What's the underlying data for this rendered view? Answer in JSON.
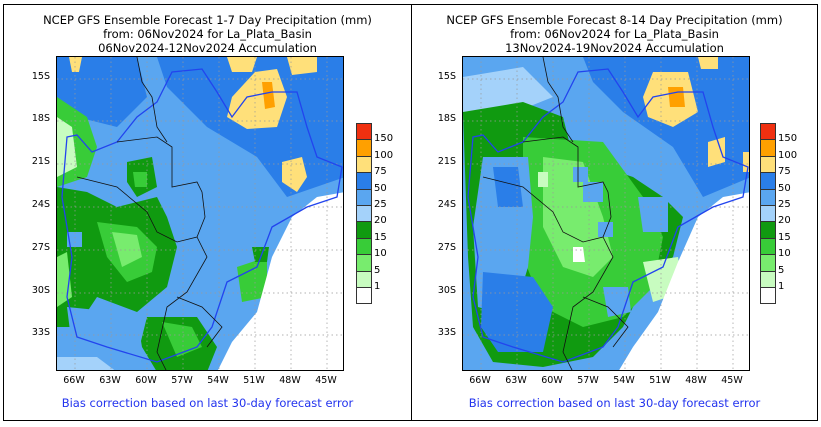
{
  "panels": [
    {
      "title_line1": "NCEP GFS Ensemble Forecast 1-7 Day Precipitation (mm)",
      "title_line2": "from: 06Nov2024   for La_Plata_Basin",
      "title_line3": "06Nov2024-12Nov2024 Accumulation",
      "footer": "Bias correction based on last 30-day forecast error"
    },
    {
      "title_line1": "NCEP GFS Ensemble Forecast 8-14 Day Precipitation (mm)",
      "title_line2": "from: 06Nov2024   for La_Plata_Basin",
      "title_line3": "13Nov2024-19Nov2024 Accumulation",
      "footer": "Bias correction based on last 30-day forecast error"
    }
  ],
  "axes": {
    "lat_labels": [
      "15S",
      "18S",
      "21S",
      "24S",
      "27S",
      "30S",
      "33S"
    ],
    "lon_labels": [
      "66W",
      "63W",
      "60W",
      "57W",
      "54W",
      "51W",
      "48W",
      "45W"
    ]
  },
  "legend": {
    "labels": [
      "150",
      "100",
      "75",
      "50",
      "25",
      "20",
      "15",
      "10",
      "5",
      "1"
    ],
    "colors": [
      "#f03010",
      "#ffa000",
      "#ffe07a",
      "#2a7ee8",
      "#5aa6f0",
      "#a4d2fa",
      "#109a10",
      "#38cc38",
      "#78ec6e",
      "#c8fcc0",
      "#ffffff"
    ]
  }
}
